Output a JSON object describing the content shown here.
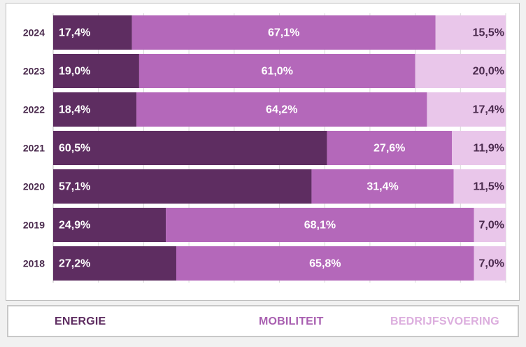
{
  "chart_data": {
    "type": "bar",
    "orientation": "horizontal",
    "stacked": true,
    "percent": true,
    "categories": [
      "2024",
      "2023",
      "2022",
      "2021",
      "2020",
      "2019",
      "2018"
    ],
    "series": [
      {
        "name": "ENERGIE",
        "color": "#5e2d61",
        "values": [
          17.4,
          19.0,
          18.4,
          60.5,
          57.1,
          24.9,
          27.2
        ],
        "labels": [
          "17,4%",
          "19,0%",
          "18,4%",
          "60,5%",
          "57,1%",
          "24,9%",
          "27,2%"
        ]
      },
      {
        "name": "MOBILITEIT",
        "color": "#b468ba",
        "values": [
          67.1,
          61.0,
          64.2,
          27.6,
          31.4,
          68.1,
          65.8
        ],
        "labels": [
          "67,1%",
          "61,0%",
          "64,2%",
          "27,6%",
          "31,4%",
          "68,1%",
          "65,8%"
        ]
      },
      {
        "name": "BEDRIJFSVOERING",
        "color": "#e9c6ea",
        "values": [
          15.5,
          20.0,
          17.4,
          11.9,
          11.5,
          7.0,
          7.0
        ],
        "labels": [
          "15,5%",
          "20,0%",
          "17,4%",
          "11,9%",
          "11,5%",
          "7,0%",
          "7,0%"
        ]
      }
    ],
    "xlim": [
      0,
      100
    ],
    "grid": true,
    "legend_position": "bottom"
  },
  "colors": {
    "category_label": "#4a2a4d",
    "label_dark": "#ffffff",
    "label_light": "#4a2a4d"
  }
}
